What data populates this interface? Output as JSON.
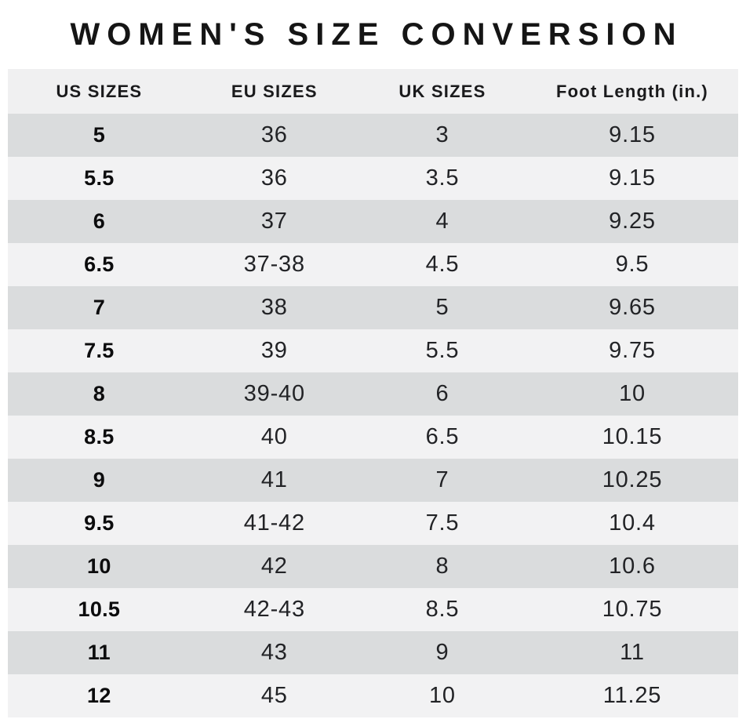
{
  "title": "WOMEN'S SIZE CONVERSION",
  "chart_data": {
    "type": "table",
    "title": "WOMEN'S SIZE CONVERSION",
    "columns": [
      "US SIZES",
      "EU SIZES",
      "UK SIZES",
      "Foot Length (in.)"
    ],
    "rows": [
      [
        "5",
        "36",
        "3",
        "9.15"
      ],
      [
        "5.5",
        "36",
        "3.5",
        "9.15"
      ],
      [
        "6",
        "37",
        "4",
        "9.25"
      ],
      [
        "6.5",
        "37-38",
        "4.5",
        "9.5"
      ],
      [
        "7",
        "38",
        "5",
        "9.65"
      ],
      [
        "7.5",
        "39",
        "5.5",
        "9.75"
      ],
      [
        "8",
        "39-40",
        "6",
        "10"
      ],
      [
        "8.5",
        "40",
        "6.5",
        "10.15"
      ],
      [
        "9",
        "41",
        "7",
        "10.25"
      ],
      [
        "9.5",
        "41-42",
        "7.5",
        "10.4"
      ],
      [
        "10",
        "42",
        "8",
        "10.6"
      ],
      [
        "10.5",
        "42-43",
        "8.5",
        "10.75"
      ],
      [
        "11",
        "43",
        "9",
        "11"
      ],
      [
        "12",
        "45",
        "10",
        "11.25"
      ]
    ],
    "layout": {
      "striped": true,
      "first_row_shade": "dark",
      "first_column_bold": true,
      "legend": "none",
      "grid": "row-stripes-only"
    }
  },
  "colors": {
    "header_bg": "#f0f0f1",
    "row_dark": "#dadcdd",
    "row_light": "#f2f2f3",
    "title_text": "#151515",
    "cell_text": "#222326"
  }
}
